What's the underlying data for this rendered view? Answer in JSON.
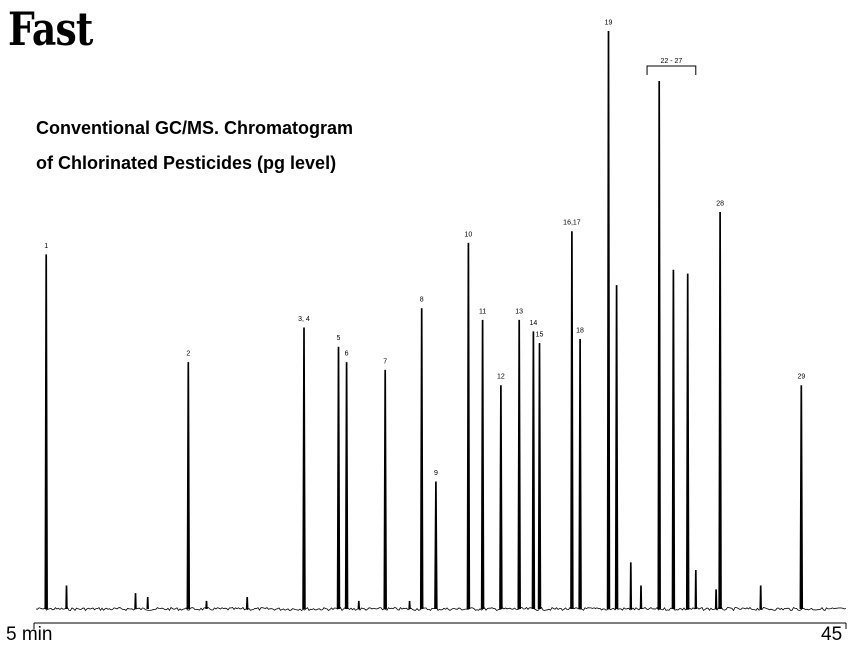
{
  "header": {
    "title": "Fast",
    "subtitle_line1": "Conventional GC/MS. Chromatogram",
    "subtitle_line2": "of Chlorinated Pesticides (pg level)"
  },
  "chart_data": {
    "type": "line",
    "title": "Conventional GC/MS. Chromatogram of Chlorinated Pesticides (pg level)",
    "xlabel": "",
    "ylabel": "",
    "xlim": [
      5,
      45
    ],
    "x_tick_labels": [
      "5 min",
      "45"
    ],
    "grid": false,
    "color": "#000000",
    "bracket_label": "22 - 27",
    "bracket_range": [
      35.2,
      37.6
    ],
    "peaks": [
      {
        "label": "1",
        "x": 5.6,
        "height": 0.92
      },
      {
        "label": "2",
        "x": 12.6,
        "height": 0.64
      },
      {
        "label": "3, 4",
        "x": 18.3,
        "height": 0.73
      },
      {
        "label": "5",
        "x": 20.0,
        "height": 0.68
      },
      {
        "label": "6",
        "x": 20.4,
        "height": 0.64
      },
      {
        "label": "7",
        "x": 22.3,
        "height": 0.62
      },
      {
        "label": "8",
        "x": 24.1,
        "height": 0.78
      },
      {
        "label": "9",
        "x": 24.8,
        "height": 0.33
      },
      {
        "label": "10",
        "x": 26.4,
        "height": 0.95
      },
      {
        "label": "11",
        "x": 27.1,
        "height": 0.75
      },
      {
        "label": "12",
        "x": 28.0,
        "height": 0.58
      },
      {
        "label": "13",
        "x": 28.9,
        "height": 0.75
      },
      {
        "label": "14",
        "x": 29.6,
        "height": 0.72
      },
      {
        "label": "15",
        "x": 29.9,
        "height": 0.69
      },
      {
        "label": "16,17",
        "x": 31.5,
        "height": 0.98
      },
      {
        "label": "18",
        "x": 31.9,
        "height": 0.7
      },
      {
        "label": "19",
        "x": 33.3,
        "height": 1.5
      },
      {
        "label": "",
        "x": 33.7,
        "height": 0.84
      },
      {
        "label": "",
        "x": 35.8,
        "height": 1.37
      },
      {
        "label": "",
        "x": 36.5,
        "height": 0.88
      },
      {
        "label": "",
        "x": 37.2,
        "height": 0.87
      },
      {
        "label": "28",
        "x": 38.8,
        "height": 1.03
      },
      {
        "label": "29",
        "x": 42.8,
        "height": 0.58
      }
    ],
    "minor_peaks": [
      {
        "x": 6.6,
        "height": 0.06
      },
      {
        "x": 10.0,
        "height": 0.04
      },
      {
        "x": 10.6,
        "height": 0.03
      },
      {
        "x": 13.5,
        "height": 0.02
      },
      {
        "x": 15.5,
        "height": 0.03
      },
      {
        "x": 21.0,
        "height": 0.02
      },
      {
        "x": 23.5,
        "height": 0.02
      },
      {
        "x": 34.4,
        "height": 0.12
      },
      {
        "x": 34.9,
        "height": 0.06
      },
      {
        "x": 37.6,
        "height": 0.1
      },
      {
        "x": 38.6,
        "height": 0.05
      },
      {
        "x": 40.8,
        "height": 0.06
      }
    ]
  }
}
